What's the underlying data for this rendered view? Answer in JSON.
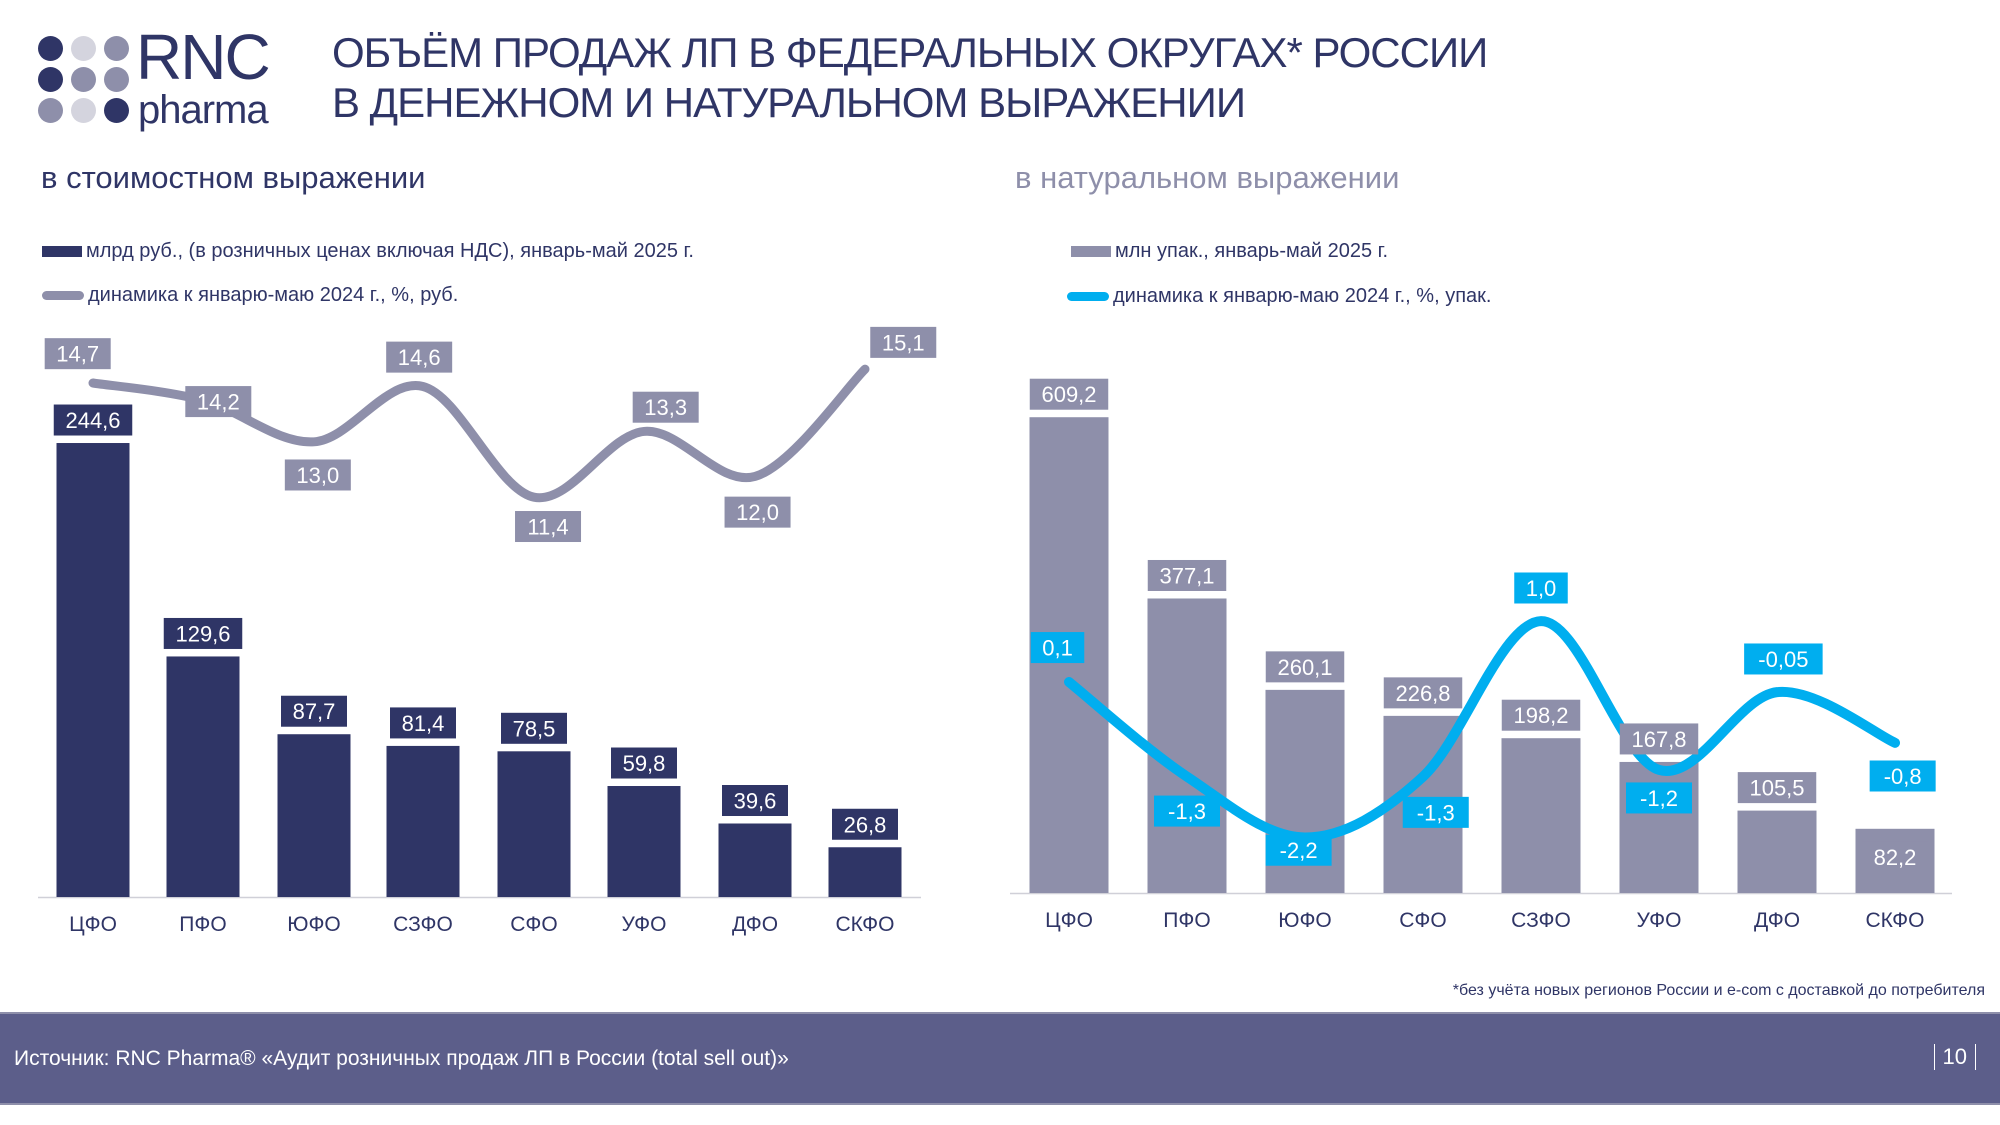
{
  "logo": {
    "text_main": "RNC",
    "text_sub": "pharma"
  },
  "header": {
    "title_line1": "ОБЪЁМ ПРОДАЖ ЛП В ФЕДЕРАЛЬНЫХ ОКРУГАХ* РОССИИ",
    "title_line2": "В ДЕНЕЖНОМ И НАТУРАЛЬНОМ ВЫРАЖЕНИИ"
  },
  "colors": {
    "navy": "#2f3566",
    "gray": "#8e8faa",
    "blue": "#00aeef",
    "footer": "#5c5e8a"
  },
  "chart_data": [
    {
      "type": "bar+line",
      "title": "в стоимостном выражении",
      "categories": [
        "ЦФО",
        "ПФО",
        "ЮФО",
        "СЗФО",
        "СФО",
        "УФО",
        "ДФО",
        "СКФО"
      ],
      "series": [
        {
          "name": "млрд руб., (в розничных ценах включая НДС), январь-май 2025 г.",
          "type": "bar",
          "values": [
            244.6,
            129.6,
            87.7,
            81.4,
            78.5,
            59.8,
            39.6,
            26.8
          ],
          "labels": [
            "244,6",
            "129,6",
            "87,7",
            "81,4",
            "78,5",
            "59,8",
            "39,6",
            "26,8"
          ]
        },
        {
          "name": "динамика к январю-маю 2024 г., %, руб.",
          "type": "line",
          "values": [
            14.7,
            14.2,
            13.0,
            14.6,
            11.4,
            13.3,
            12.0,
            15.1
          ],
          "labels": [
            "14,7",
            "14,2",
            "13,0",
            "14,6",
            "11,4",
            "13,3",
            "12,0",
            "15,1"
          ]
        }
      ]
    },
    {
      "type": "bar+line",
      "title": "в натуральном выражении",
      "categories": [
        "ЦФО",
        "ПФО",
        "ЮФО",
        "СФО",
        "СЗФО",
        "УФО",
        "ДФО",
        "СКФО"
      ],
      "series": [
        {
          "name": "млн упак., январь-май 2025 г.",
          "type": "bar",
          "values": [
            609.2,
            377.1,
            260.1,
            226.8,
            198.2,
            167.8,
            105.5,
            82.2
          ],
          "labels": [
            "609,2",
            "377,1",
            "260,1",
            "226,8",
            "198,2",
            "167,8",
            "105,5",
            "82,2"
          ]
        },
        {
          "name": "динамика к январю-маю 2024 г., %, упак.",
          "type": "line",
          "values": [
            0.1,
            -1.3,
            -2.2,
            -1.3,
            1.0,
            -1.2,
            -0.05,
            -0.8
          ],
          "labels": [
            "0,1",
            "-1,3",
            "-2,2",
            "-1,3",
            "1,0",
            "-1,2",
            "-0,05",
            "-0,8"
          ]
        }
      ]
    }
  ],
  "footnote": "*без учёта новых регионов России и e-com с доставкой до потребителя",
  "footer": {
    "source": "Источник: RNC Pharma® «Аудит розничных продаж ЛП в России (total sell out)»",
    "page": "10"
  }
}
